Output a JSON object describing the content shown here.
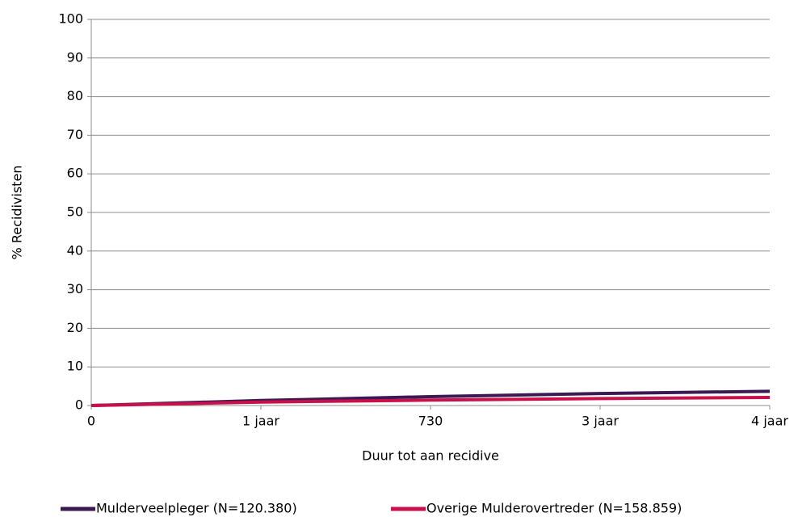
{
  "chart_data": {
    "type": "line",
    "x_label": "Duur tot aan recidive",
    "y_label": "% Recidivisten",
    "x": [
      0,
      365,
      730,
      1095,
      1460
    ],
    "series": [
      {
        "name": "Mulderveelpleger (N=120.380)",
        "color": "#3b1a54",
        "values": [
          0,
          1.3,
          2.3,
          3.1,
          3.7
        ]
      },
      {
        "name": "Overige Mulderovertreder (N=158.859)",
        "color": "#c8104a",
        "values": [
          0,
          0.9,
          1.4,
          1.8,
          2.1
        ]
      }
    ],
    "xlim": [
      0,
      1460
    ],
    "xticks": [
      0,
      {
        "value": 365,
        "label": "1 jaar"
      },
      730,
      {
        "value": 1095,
        "label": "3 jaar"
      },
      {
        "value": 1460,
        "label": "4 jaar"
      }
    ],
    "ylim": [
      0,
      100
    ],
    "yticks": [
      0,
      10,
      20,
      30,
      40,
      50,
      60,
      70,
      80,
      90,
      100
    ],
    "grid": true,
    "legend": "bottom"
  }
}
